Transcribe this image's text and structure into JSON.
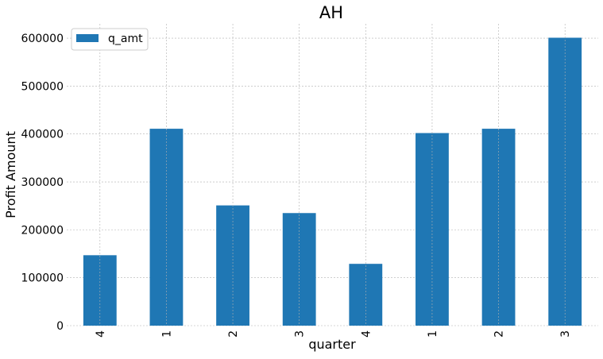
{
  "chart_data": {
    "type": "bar",
    "title": "AH",
    "xlabel": "quarter",
    "ylabel": "Profit Amount",
    "categories": [
      "4",
      "1",
      "2",
      "3",
      "4",
      "1",
      "2",
      "3"
    ],
    "series": [
      {
        "name": "q_amt",
        "color": "#1f77b4",
        "values": [
          147000,
          411000,
          251000,
          235000,
          129000,
          402000,
          411000,
          601000
        ]
      }
    ],
    "ylim": [
      0,
      630000
    ],
    "yticks": [
      0,
      100000,
      200000,
      300000,
      400000,
      500000,
      600000
    ],
    "ytick_labels": [
      "0",
      "100000",
      "200000",
      "300000",
      "400000",
      "500000",
      "600000"
    ],
    "grid": true,
    "legend_position": "top-left",
    "xtick_rotation": "vertical"
  }
}
